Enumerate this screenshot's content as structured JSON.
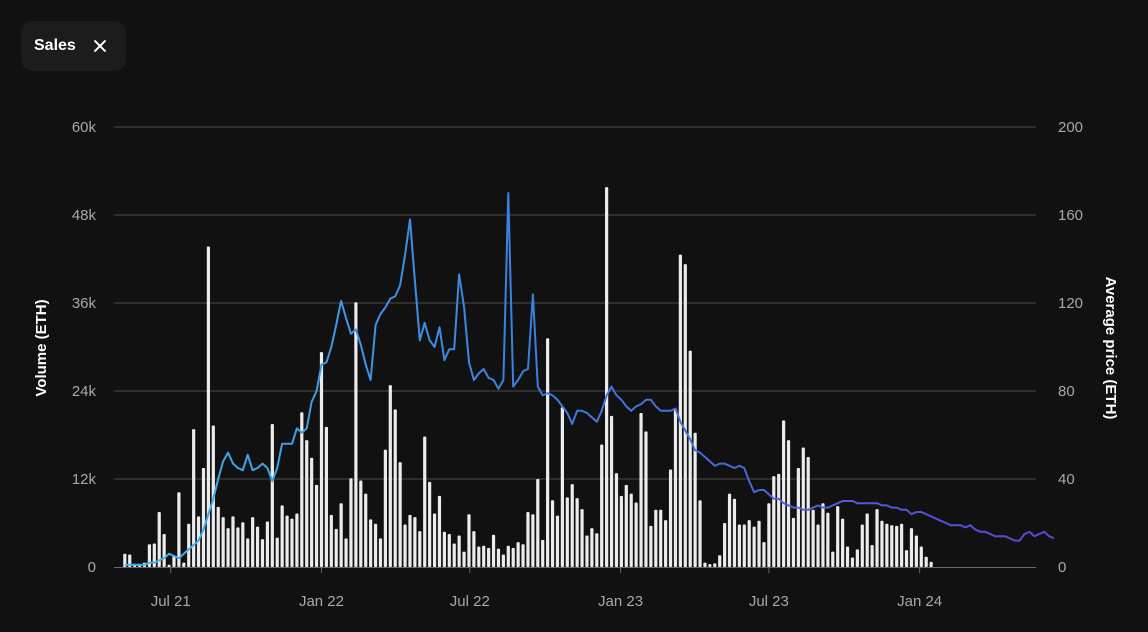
{
  "chip": {
    "label": "Sales",
    "close_icon": "close-icon"
  },
  "colors": {
    "background": "#111111",
    "bar": "#ececec",
    "grid": "#4a4a4a",
    "line_start": "#3fb6ea",
    "line_mid": "#3a7fe0",
    "line_end": "#5848d8"
  },
  "chart_data": {
    "type": "bar+line",
    "title": "",
    "ylabel_left": "Volume (ETH)",
    "ylabel_right": "Average price (ETH)",
    "left_axis": {
      "min": 0,
      "max": 60000,
      "ticks": [
        "0",
        "12k",
        "24k",
        "36k",
        "48k",
        "60k"
      ]
    },
    "right_axis": {
      "min": 0,
      "max": 200,
      "ticks": [
        "0",
        "40",
        "80",
        "120",
        "160",
        "200"
      ]
    },
    "x_range": [
      "2021-05-05",
      "2024-05-22"
    ],
    "x_ticks": [
      {
        "date": "2021-07-01",
        "label": "Jul 21"
      },
      {
        "date": "2022-01-01",
        "label": "Jan 22"
      },
      {
        "date": "2022-07-01",
        "label": "Jul 22"
      },
      {
        "date": "2023-01-01",
        "label": "Jan 23"
      },
      {
        "date": "2023-07-01",
        "label": "Jul 23"
      },
      {
        "date": "2024-01-01",
        "label": "Jan 24"
      }
    ],
    "grid": true,
    "series": [
      {
        "type": "bar",
        "axis": "left",
        "start_date": "2021-05-06",
        "interval_days": 6,
        "values": [
          1800,
          1700,
          300,
          200,
          600,
          3100,
          3200,
          7500,
          4500,
          300,
          1600,
          10200,
          600,
          5900,
          18800,
          6900,
          13500,
          43700,
          19300,
          8200,
          6800,
          5300,
          6900,
          5400,
          6100,
          3900,
          6800,
          5500,
          3800,
          6200,
          19500,
          4000,
          8400,
          7000,
          6600,
          7300,
          21100,
          17300,
          14900,
          11200,
          29300,
          19100,
          7100,
          5200,
          8700,
          3900,
          12100,
          36100,
          11800,
          10000,
          6500,
          5900,
          3900,
          16000,
          24800,
          21500,
          14300,
          5800,
          7100,
          6800,
          4900,
          17800,
          11600,
          7300,
          9700,
          4800,
          4500,
          3200,
          4300,
          2100,
          7200,
          4900,
          2800,
          2900,
          2600,
          4400,
          2500,
          1700,
          2900,
          2600,
          3400,
          3100,
          7500,
          7200,
          12000,
          3700,
          31200,
          9100,
          7000,
          21800,
          9500,
          11300,
          9400,
          7900,
          4300,
          5300,
          4600,
          16700,
          51800,
          20600,
          12800,
          9700,
          11200,
          10000,
          8800,
          21000,
          18500,
          5600,
          7800,
          7800,
          6400,
          13300,
          21600,
          42600,
          41300,
          29500,
          18300,
          9100,
          600,
          400,
          500,
          1600,
          6000,
          10000,
          9300,
          5800,
          5800,
          6400,
          5500,
          6300,
          3400,
          8700,
          12400,
          12700,
          20000,
          17300,
          6700,
          13500,
          16300,
          15000,
          7800,
          5800,
          8700,
          7400,
          2100,
          8300,
          6600,
          2800,
          1300,
          2400,
          5800,
          7300,
          3000,
          7900,
          6300,
          5900,
          5700,
          5600,
          5900,
          2300,
          5300,
          4300,
          2800,
          1400,
          700
        ]
      },
      {
        "type": "line",
        "axis": "right",
        "start_date": "2021-05-06",
        "interval_days": 6,
        "values": [
          1,
          1,
          1,
          1,
          1,
          2,
          2,
          3,
          4,
          6,
          5,
          4,
          6,
          8,
          10,
          12,
          17,
          24,
          31,
          40,
          48,
          52,
          47,
          45,
          44,
          51,
          44,
          45,
          47,
          45,
          39,
          45,
          56,
          56,
          56,
          63,
          61,
          63,
          75,
          80,
          92,
          93,
          100,
          110,
          121,
          113,
          106,
          108,
          101,
          92,
          85,
          110,
          115,
          118,
          122,
          123,
          128,
          142,
          158,
          130,
          103,
          111,
          103,
          100,
          109,
          94,
          99,
          99,
          133,
          118,
          93,
          85,
          88,
          90,
          86,
          85,
          81,
          85,
          170,
          82,
          85,
          89,
          90,
          124,
          82,
          78,
          79,
          78,
          76,
          73,
          70,
          65,
          71,
          71,
          70,
          68,
          66,
          71,
          78,
          82,
          78,
          76,
          73,
          71,
          73,
          74,
          76,
          76,
          73,
          71,
          71,
          71,
          72,
          66,
          62,
          58,
          53,
          52,
          50,
          48,
          46,
          47,
          47,
          46,
          45,
          46,
          45,
          39,
          34,
          35,
          35,
          33,
          31,
          31,
          29,
          28,
          27,
          27,
          26,
          26,
          27,
          28,
          27,
          27,
          28,
          29,
          30,
          30,
          30,
          29,
          29,
          29,
          29,
          29,
          28,
          28,
          27,
          27,
          26,
          26,
          24,
          25,
          25,
          24,
          23,
          22,
          21,
          20,
          19,
          19,
          19,
          18,
          19,
          17,
          16,
          16,
          15,
          14,
          14,
          14,
          13,
          12,
          12,
          15,
          16,
          14,
          15,
          16,
          14,
          13
        ]
      }
    ]
  }
}
